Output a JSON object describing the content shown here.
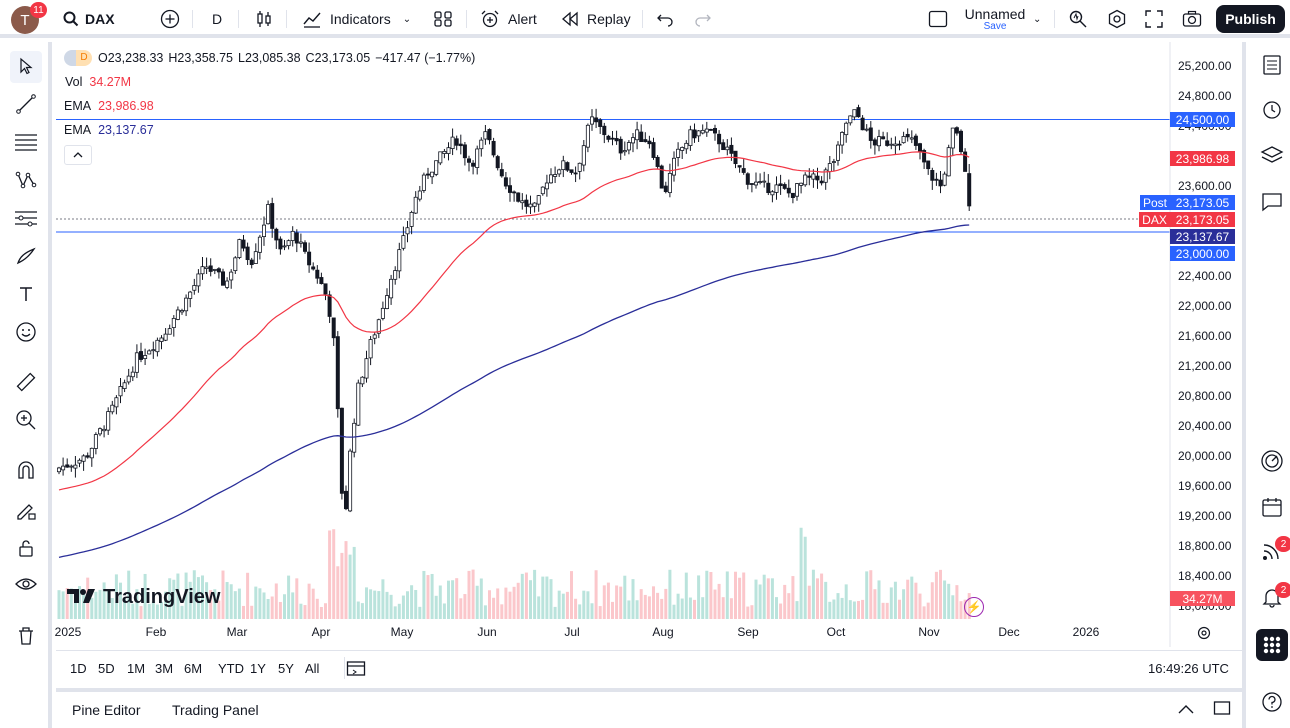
{
  "topbar": {
    "avatar_letter": "T",
    "notifications_badge": "11",
    "symbol": "DAX",
    "interval": "D",
    "indicators_label": "Indicators",
    "alert_label": "Alert",
    "replay_label": "Replay",
    "layout_name": "Unnamed",
    "save_label": "Save",
    "publish_label": "Publish"
  },
  "legend": {
    "exchange_badge": "D",
    "open_label": "O",
    "open": "23,238.33",
    "high_label": "H",
    "high": "23,358.75",
    "low_label": "L",
    "low": "23,085.38",
    "close_label": "C",
    "close": "23,173.05",
    "change": "−417.47 (−1.77%)",
    "vol_label": "Vol",
    "vol_value": "34.27M",
    "ema1_label": "EMA",
    "ema1_value": "23,986.98",
    "ema2_label": "EMA",
    "ema2_value": "23,137.67"
  },
  "colors": {
    "up": "#089981",
    "down": "#f23645",
    "ema50": "#f23645",
    "ema200": "#2a2e99",
    "hline": "#2962ff",
    "accent": "#131722"
  },
  "price_axis": {
    "ticks": [
      "25,200.00",
      "24,800.00",
      "24,400.00",
      "23,600.00",
      "22,400.00",
      "22,000.00",
      "21,600.00",
      "21,200.00",
      "20,800.00",
      "20,400.00",
      "20,000.00",
      "19,600.00",
      "19,200.00",
      "18,800.00",
      "18,400.00",
      "18,000.00"
    ],
    "tick_values": [
      25200,
      24800,
      24400,
      23600,
      22400,
      22000,
      21600,
      21200,
      20800,
      20400,
      20000,
      19600,
      19200,
      18800,
      18400,
      18000
    ],
    "label_24500": "24,500.00",
    "label_ema50": "23,986.98",
    "post_label": "Post",
    "post_value": "23,173.05",
    "dax_label": "DAX",
    "dax_value": "23,173.05",
    "label_ema200": "23,137.67",
    "label_23000": "23,000.00",
    "vol_label": "34.27M"
  },
  "time_axis": {
    "labels": [
      "2025",
      "Feb",
      "Mar",
      "Apr",
      "May",
      "Jun",
      "Jul",
      "Aug",
      "Sep",
      "Oct",
      "Nov",
      "Dec",
      "2026"
    ]
  },
  "watermark": "TradingView",
  "ranges": [
    "1D",
    "5D",
    "1M",
    "3M",
    "6M",
    "YTD",
    "1Y",
    "5Y",
    "All"
  ],
  "clock": "16:49:26 UTC",
  "panels": {
    "pine": "Pine Editor",
    "trading": "Trading Panel"
  },
  "rightbar": {
    "ideas_badge": "2",
    "alerts_badge": "2"
  },
  "chart_data": {
    "type": "candlestick",
    "title": "",
    "ylim": [
      18000,
      25200
    ],
    "horizontal_lines": [
      24500,
      23000
    ],
    "ema50_last": 23986.98,
    "ema200_last": 23137.67,
    "last_close": 23173.05,
    "monthly_close_approx": {
      "x": [
        "Jan",
        "Feb",
        "Mar",
        "Apr",
        "May",
        "Jun",
        "Jul",
        "Aug",
        "Sep",
        "Oct",
        "Nov"
      ],
      "y": [
        21700,
        22550,
        22200,
        22500,
        24000,
        23900,
        24100,
        23900,
        23900,
        24100,
        23173
      ]
    }
  }
}
